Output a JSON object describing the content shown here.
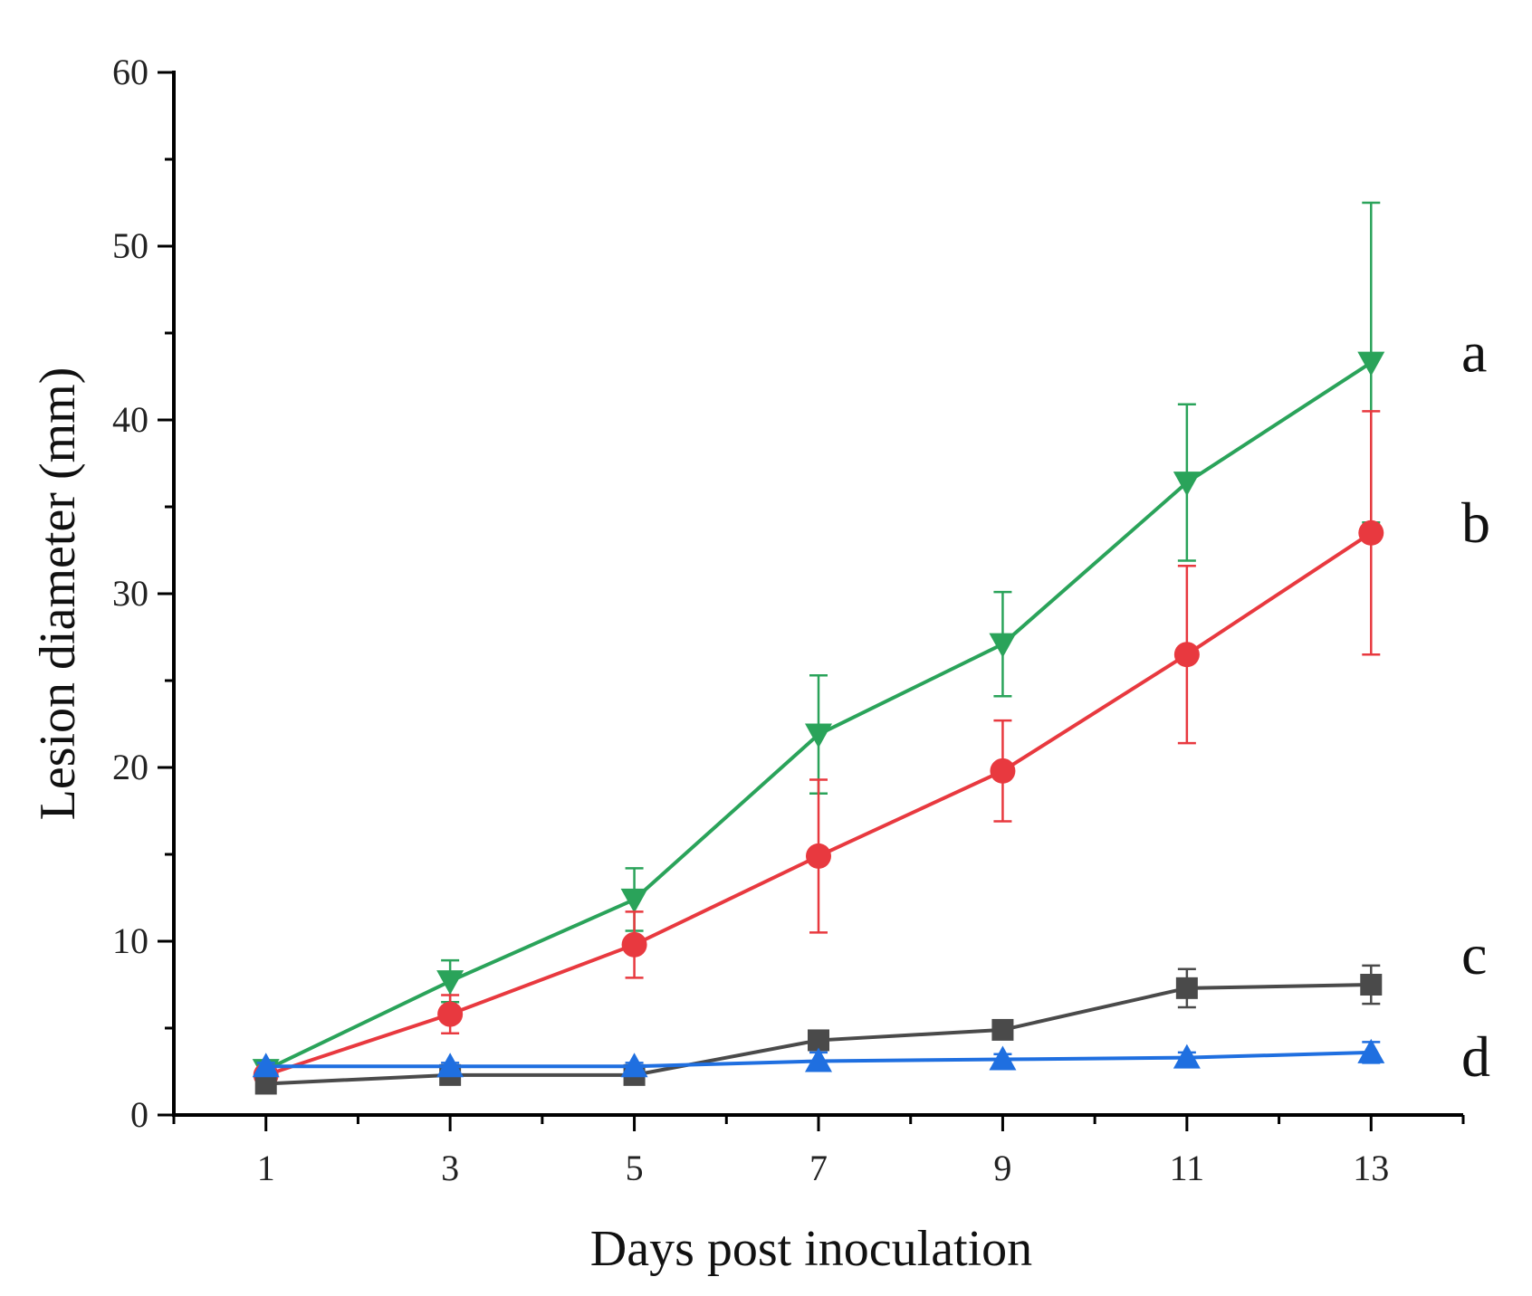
{
  "chart_data": {
    "type": "line",
    "title": "",
    "xlabel": "Days post inoculation",
    "ylabel": "Lesion diameter (mm)",
    "xlim": [
      0,
      14
    ],
    "ylim": [
      0,
      60
    ],
    "x_ticks": [
      1,
      3,
      5,
      7,
      9,
      11,
      13
    ],
    "y_ticks": [
      0,
      10,
      20,
      30,
      40,
      50,
      60
    ],
    "x": [
      1,
      3,
      5,
      7,
      9,
      11,
      13
    ],
    "series": [
      {
        "name": "a",
        "label": "a",
        "color": "#2aa35a",
        "marker": "triangle-down",
        "values": [
          2.6,
          7.7,
          12.4,
          21.9,
          27.1,
          36.4,
          43.3
        ],
        "errors": [
          0.4,
          1.2,
          1.8,
          3.4,
          3.0,
          4.5,
          9.2
        ]
      },
      {
        "name": "b",
        "label": "b",
        "color": "#e8393f",
        "marker": "circle",
        "values": [
          2.3,
          5.8,
          9.8,
          14.9,
          19.8,
          26.5,
          33.5
        ],
        "errors": [
          0.4,
          1.1,
          1.9,
          4.4,
          2.9,
          5.1,
          7.0
        ]
      },
      {
        "name": "c",
        "label": "c",
        "color": "#4a4a4a",
        "marker": "square",
        "values": [
          1.8,
          2.3,
          2.3,
          4.3,
          4.9,
          7.3,
          7.5
        ],
        "errors": [
          0.3,
          0.3,
          0.3,
          0.4,
          0.4,
          1.1,
          1.1
        ]
      },
      {
        "name": "d",
        "label": "d",
        "color": "#1f6fe0",
        "marker": "triangle-up",
        "values": [
          2.8,
          2.8,
          2.8,
          3.1,
          3.2,
          3.3,
          3.6
        ],
        "errors": [
          0.2,
          0.2,
          0.2,
          0.5,
          0.3,
          0.3,
          0.6
        ]
      }
    ]
  }
}
